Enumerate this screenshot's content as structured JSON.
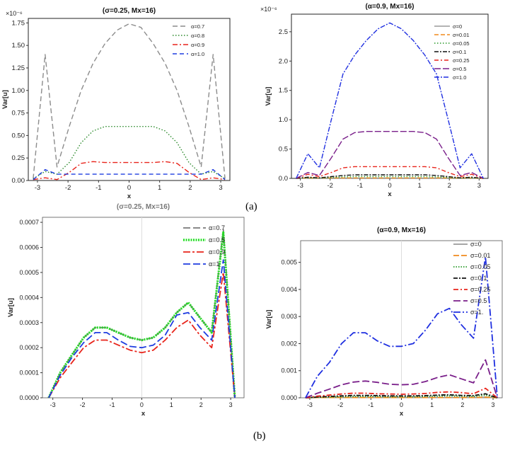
{
  "captions": {
    "a": "(a)",
    "b": "(b)"
  },
  "chart_data": [
    {
      "type": "line",
      "title": "(σ=0.25, Mx=16)",
      "xlabel": "x",
      "ylabel": "Var[u]",
      "ylim": [
        0,
        1.8
      ],
      "xlim": [
        -3.3,
        3.3
      ],
      "exponent_label": "×10⁻⁶",
      "xticks": [
        -3,
        -2,
        -1,
        0,
        1,
        2,
        3
      ],
      "yticks": [
        0,
        0.25,
        0.5,
        0.75,
        1.0,
        1.25,
        1.5,
        1.75
      ],
      "ytick_labels": [
        "0.00",
        "0.25",
        "0.50",
        "0.75",
        "1.00",
        "1.25",
        "1.50",
        "1.75"
      ],
      "x": [
        -3.14,
        -2.75,
        -2.36,
        -1.96,
        -1.57,
        -1.18,
        -0.79,
        -0.39,
        0,
        0.39,
        0.79,
        1.18,
        1.57,
        1.96,
        2.36,
        2.75,
        3.14
      ],
      "series": [
        {
          "name": "α=0.7",
          "color": "#8c8c8c",
          "dash": "7,4",
          "values": [
            0.02,
            1.4,
            0.15,
            0.6,
            1.0,
            1.3,
            1.52,
            1.67,
            1.74,
            1.7,
            1.52,
            1.3,
            1.0,
            0.6,
            0.15,
            1.4,
            0.02
          ]
        },
        {
          "name": "α=0.8",
          "color": "#2b8a2b",
          "dash": "1.5,2.5",
          "values": [
            0.02,
            0.1,
            0.07,
            0.2,
            0.42,
            0.55,
            0.6,
            0.6,
            0.6,
            0.6,
            0.6,
            0.55,
            0.42,
            0.2,
            0.07,
            0.1,
            0.02
          ]
        },
        {
          "name": "α=0.9",
          "color": "#e8241b",
          "dash": "7,3,2,3",
          "values": [
            0.01,
            0.03,
            0.01,
            0.09,
            0.19,
            0.21,
            0.2,
            0.2,
            0.2,
            0.2,
            0.2,
            0.21,
            0.19,
            0.09,
            0.01,
            0.03,
            0.01
          ]
        },
        {
          "name": "α=1.0",
          "color": "#1f3de0",
          "dash": "6,4",
          "values": [
            0.01,
            0.12,
            0.07,
            0.07,
            0.07,
            0.07,
            0.07,
            0.07,
            0.07,
            0.07,
            0.07,
            0.07,
            0.07,
            0.07,
            0.07,
            0.12,
            0.01
          ]
        }
      ]
    },
    {
      "type": "line",
      "title": "(α=0.9, Mx=16)",
      "xlabel": "x",
      "ylabel": "Var[u]",
      "ylim": [
        0,
        2.8
      ],
      "xlim": [
        -3.3,
        3.3
      ],
      "exponent_label": "×10⁻⁶",
      "xticks": [
        -3,
        -2,
        -1,
        0,
        1,
        2,
        3
      ],
      "yticks": [
        0,
        0.5,
        1.0,
        1.5,
        2.0,
        2.5
      ],
      "ytick_labels": [
        "0.0",
        "0.5",
        "1.0",
        "1.5",
        "2.0",
        "2.5"
      ],
      "x": [
        -3.14,
        -2.75,
        -2.36,
        -1.96,
        -1.57,
        -1.18,
        -0.79,
        -0.39,
        0,
        0.39,
        0.79,
        1.18,
        1.57,
        1.96,
        2.36,
        2.75,
        3.14
      ],
      "series": [
        {
          "name": "σ=0",
          "color": "#9a9a9a",
          "dash": "",
          "values": [
            0,
            0.005,
            0.005,
            0.005,
            0.005,
            0.005,
            0.005,
            0.005,
            0.005,
            0.005,
            0.005,
            0.005,
            0.005,
            0.005,
            0.005,
            0.005,
            0
          ]
        },
        {
          "name": "σ=0.01",
          "color": "#f08a1c",
          "dash": "6,3",
          "values": [
            0,
            0.007,
            0.007,
            0.007,
            0.007,
            0.007,
            0.007,
            0.007,
            0.007,
            0.007,
            0.007,
            0.007,
            0.007,
            0.007,
            0.007,
            0.007,
            0
          ]
        },
        {
          "name": "σ=0.05",
          "color": "#2a9a2a",
          "dash": "1.5,2.5",
          "values": [
            0,
            0.008,
            0.005,
            0.015,
            0.025,
            0.03,
            0.03,
            0.03,
            0.03,
            0.03,
            0.03,
            0.03,
            0.025,
            0.015,
            0.005,
            0.008,
            0
          ]
        },
        {
          "name": "σ=0.1",
          "color": "#111111",
          "dash": "6,2,2,2",
          "values": [
            0,
            0.02,
            0.01,
            0.03,
            0.05,
            0.06,
            0.06,
            0.06,
            0.06,
            0.06,
            0.06,
            0.06,
            0.05,
            0.03,
            0.01,
            0.02,
            0
          ]
        },
        {
          "name": "σ=0.25",
          "color": "#e8241b",
          "dash": "6,3,2,3",
          "values": [
            0,
            0.07,
            0.03,
            0.1,
            0.18,
            0.2,
            0.2,
            0.2,
            0.2,
            0.2,
            0.2,
            0.2,
            0.18,
            0.1,
            0.03,
            0.07,
            0
          ]
        },
        {
          "name": "σ=0.5",
          "color": "#7a1f8a",
          "dash": "9,3",
          "values": [
            0,
            0.1,
            0.05,
            0.35,
            0.67,
            0.78,
            0.8,
            0.8,
            0.8,
            0.8,
            0.8,
            0.78,
            0.67,
            0.35,
            0.05,
            0.1,
            0
          ]
        },
        {
          "name": "σ=1.0",
          "color": "#1f2fe0",
          "dash": "7,2,2,2",
          "values": [
            0,
            0.42,
            0.18,
            1.0,
            1.78,
            2.1,
            2.35,
            2.55,
            2.65,
            2.55,
            2.35,
            2.1,
            1.78,
            1.0,
            0.18,
            0.42,
            0
          ]
        }
      ]
    },
    {
      "type": "line",
      "title": "(σ=0.25, Mx=16)",
      "xlabel": "x",
      "ylabel": "Var[u]",
      "ylim": [
        0,
        0.00072
      ],
      "xlim": [
        -3.35,
        3.45
      ],
      "xticks": [
        -3,
        -2,
        -1,
        0,
        1,
        2,
        3
      ],
      "yticks": [
        0,
        0.0001,
        0.0002,
        0.0003,
        0.0004,
        0.0005,
        0.0006,
        0.0007
      ],
      "ytick_labels": [
        "0.0000",
        "0.0001",
        "0.0002",
        "0.0003",
        "0.0004",
        "0.0005",
        "0.0006",
        "0.0007"
      ],
      "x": [
        -3.14,
        -2.75,
        -2.36,
        -1.96,
        -1.57,
        -1.18,
        -0.79,
        -0.39,
        0,
        0.39,
        0.79,
        1.18,
        1.57,
        1.96,
        2.36,
        2.75,
        3.14
      ],
      "series": [
        {
          "name": "α=0.7",
          "color": "#7a7a7a",
          "dash": "10,4",
          "values": [
            0,
            0.0001,
            0.00017,
            0.00024,
            0.00028,
            0.00028,
            0.00026,
            0.00024,
            0.00023,
            0.00024,
            0.00028,
            0.00034,
            0.00038,
            0.00032,
            0.00026,
            0.00067,
            0
          ]
        },
        {
          "name": "α=0.8",
          "color": "#22dd22",
          "dash": "2,1.5",
          "width": 3.2,
          "values": [
            0,
            0.0001,
            0.00017,
            0.00024,
            0.00028,
            0.00028,
            0.00026,
            0.00024,
            0.00023,
            0.00024,
            0.00028,
            0.00034,
            0.00038,
            0.00032,
            0.00026,
            0.00066,
            0
          ]
        },
        {
          "name": "α=0.9",
          "color": "#e8241b",
          "dash": "10,3,3,3",
          "values": [
            0,
            8e-05,
            0.00014,
            0.0002,
            0.00023,
            0.00023,
            0.00021,
            0.00019,
            0.00018,
            0.00019,
            0.00023,
            0.00028,
            0.00031,
            0.00025,
            0.0002,
            0.0005,
            0
          ]
        },
        {
          "name": "α=1",
          "color": "#1f3de0",
          "dash": "10,4",
          "values": [
            0,
            9e-05,
            0.00016,
            0.00022,
            0.00026,
            0.00026,
            0.00023,
            0.000205,
            0.0002,
            0.00021,
            0.00025,
            0.00033,
            0.00034,
            0.00028,
            0.00023,
            0.00055,
            0
          ]
        }
      ]
    },
    {
      "type": "line",
      "title": "(α=0.9, Mx=16)",
      "xlabel": "x",
      "ylabel": "Var[u]",
      "ylim": [
        0,
        0.0058
      ],
      "xlim": [
        -3.3,
        3.3
      ],
      "xticks": [
        -3,
        -2,
        -1,
        0,
        1,
        2,
        3
      ],
      "yticks": [
        0,
        0.001,
        0.002,
        0.003,
        0.004,
        0.005
      ],
      "ytick_labels": [
        "0.000",
        "0.001",
        "0.002",
        "0.003",
        "0.004",
        "0.005"
      ],
      "x": [
        -3.14,
        -2.75,
        -2.36,
        -1.96,
        -1.57,
        -1.18,
        -0.79,
        -0.39,
        0,
        0.39,
        0.79,
        1.18,
        1.57,
        1.96,
        2.36,
        2.75,
        3.14
      ],
      "series": [
        {
          "name": "σ=0",
          "color": "#9a9a9a",
          "dash": "",
          "values": [
            0,
            1e-05,
            1e-05,
            1e-05,
            1e-05,
            1e-05,
            1e-05,
            1e-05,
            1e-05,
            1e-05,
            1e-05,
            1e-05,
            1e-05,
            1e-05,
            1e-05,
            2e-05,
            0
          ]
        },
        {
          "name": "σ=0.01",
          "color": "#f08a1c",
          "dash": "8,3",
          "values": [
            0,
            1e-05,
            1e-05,
            1e-05,
            1e-05,
            1e-05,
            1e-05,
            1e-05,
            1e-05,
            1e-05,
            1e-05,
            1e-05,
            1e-05,
            1e-05,
            1e-05,
            2e-05,
            0
          ]
        },
        {
          "name": "σ=0.05",
          "color": "#2a9a2a",
          "dash": "1.5,2",
          "values": [
            0,
            2e-05,
            3e-05,
            4e-05,
            5e-05,
            5e-05,
            5e-05,
            4e-05,
            4e-05,
            4e-05,
            5e-05,
            6e-05,
            7e-05,
            6e-05,
            5e-05,
            0.0001,
            0
          ]
        },
        {
          "name": "σ=0.1",
          "color": "#111111",
          "dash": "6,2,2,2",
          "values": [
            0,
            3e-05,
            5e-05,
            7e-05,
            9e-05,
            9e-05,
            8e-05,
            7e-05,
            7e-05,
            7e-05,
            8e-05,
            0.0001,
            0.00011,
            9e-05,
            8e-05,
            0.00015,
            0
          ]
        },
        {
          "name": "σ=0.25",
          "color": "#e8241b",
          "dash": "7,3,2,3",
          "values": [
            0,
            6e-05,
            0.0001,
            0.00014,
            0.00017,
            0.00017,
            0.00015,
            0.00014,
            0.00013,
            0.00014,
            0.00016,
            0.0002,
            0.00022,
            0.00019,
            0.00015,
            0.00035,
            0
          ]
        },
        {
          "name": "σ=0.5",
          "color": "#7a1f8a",
          "dash": "10,4",
          "values": [
            0,
            0.00017,
            0.00032,
            0.00048,
            0.00058,
            0.00062,
            0.00057,
            0.0005,
            0.00048,
            0.0005,
            0.0006,
            0.00075,
            0.00085,
            0.0007,
            0.00055,
            0.0014,
            0
          ]
        },
        {
          "name": "σ=1.",
          "color": "#1f2fe0",
          "dash": "10,3,2,3",
          "values": [
            0,
            0.0008,
            0.0013,
            0.002,
            0.0024,
            0.0024,
            0.0021,
            0.0019,
            0.0019,
            0.002,
            0.0025,
            0.0031,
            0.0033,
            0.0027,
            0.0022,
            0.0052,
            0
          ]
        }
      ]
    }
  ]
}
